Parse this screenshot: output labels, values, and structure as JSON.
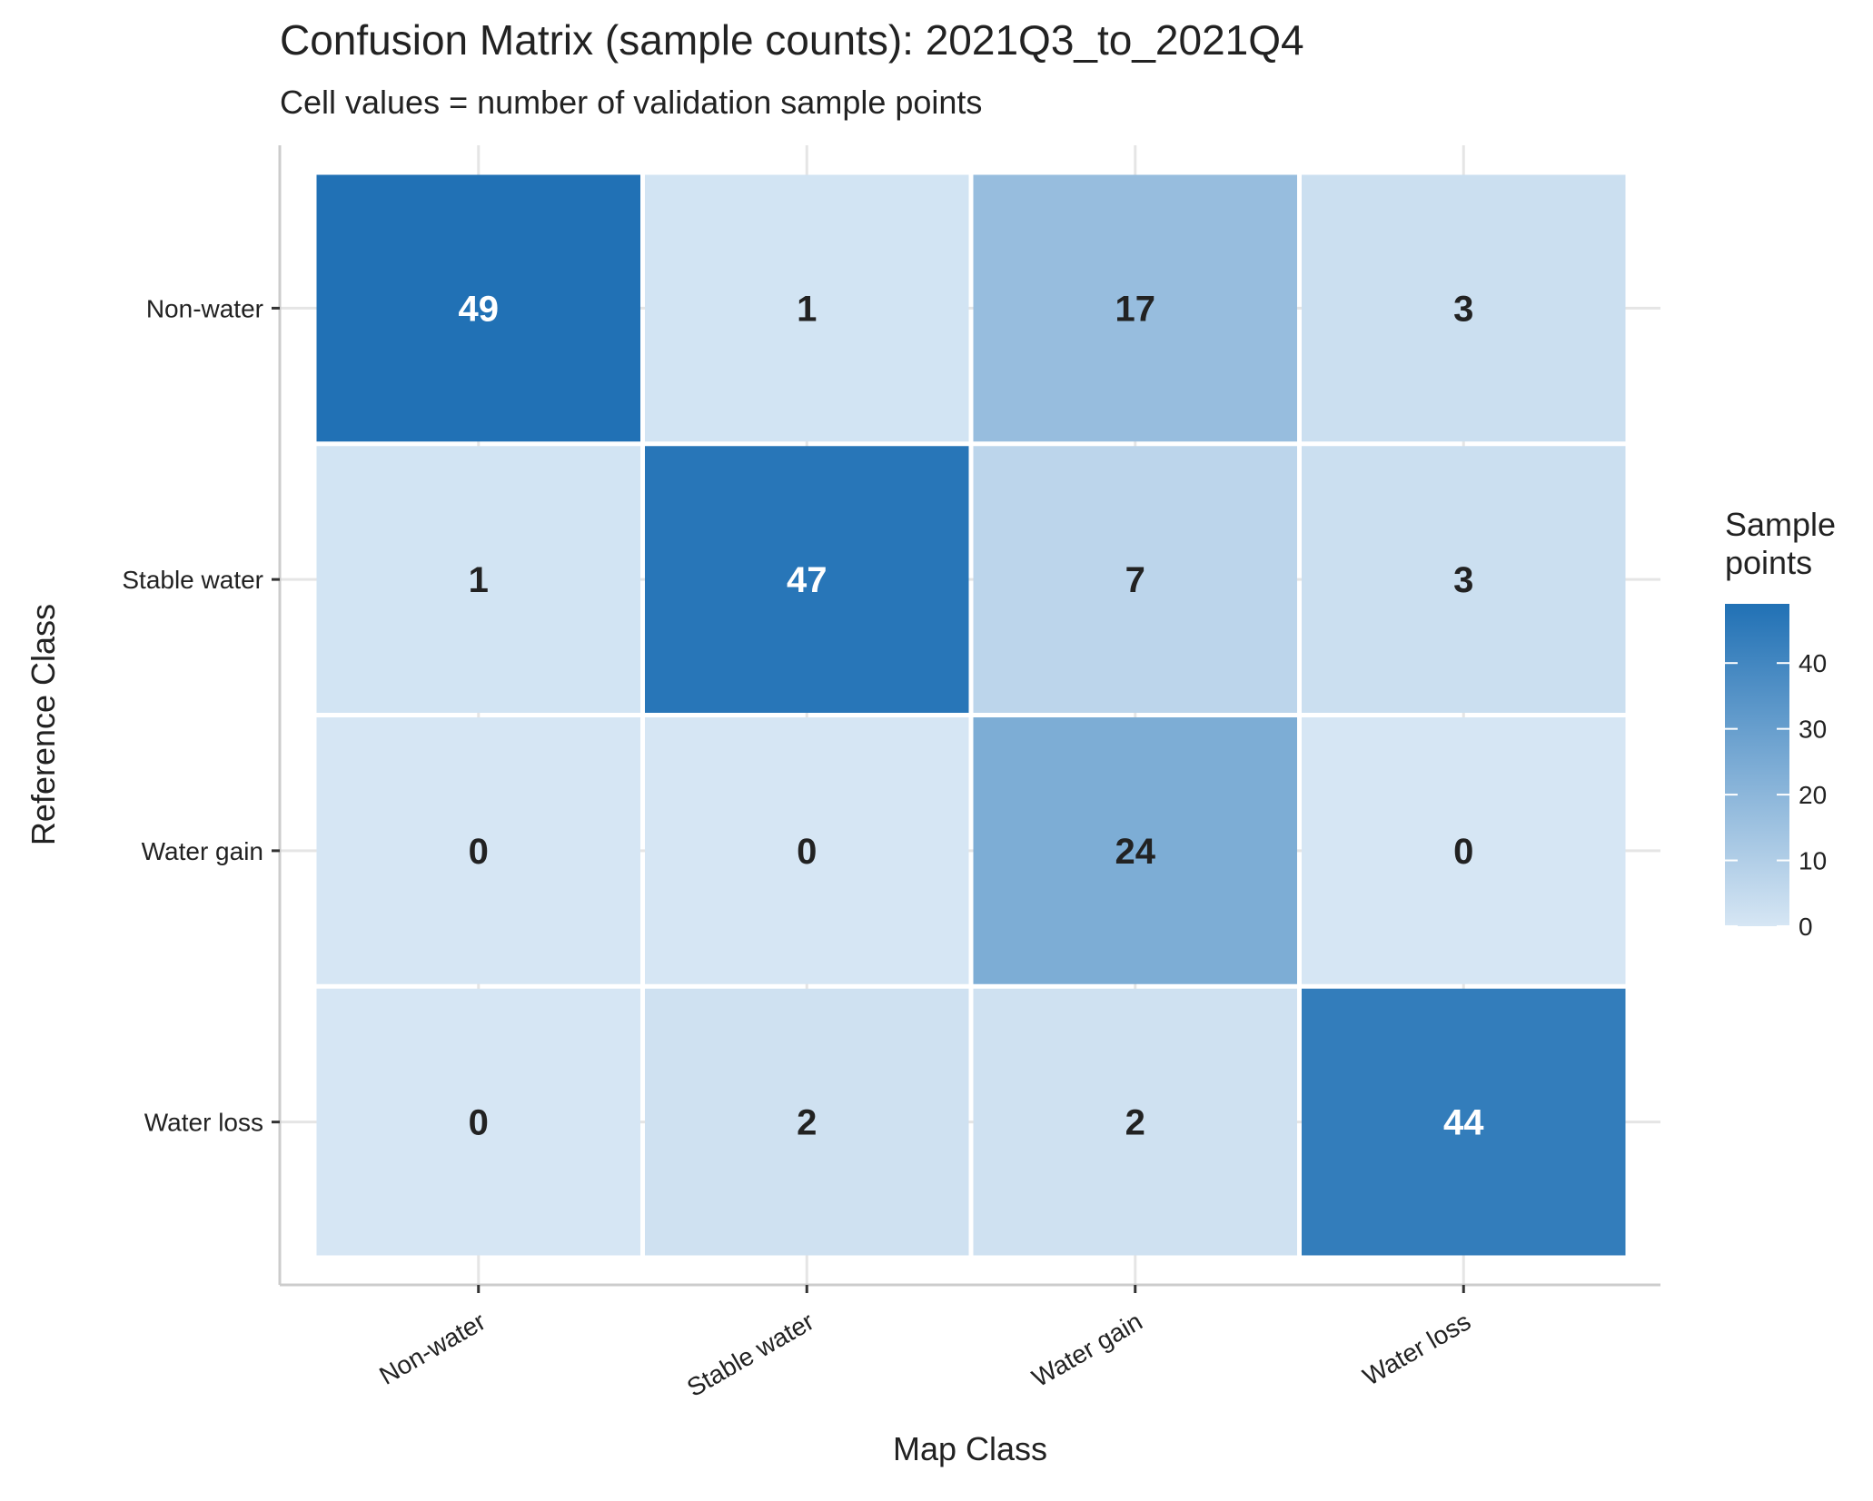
{
  "chart_data": {
    "type": "heatmap",
    "title": "Confusion Matrix (sample counts): 2021Q3_to_2021Q4",
    "subtitle": "Cell values = number of validation sample points",
    "xlabel": "Map Class",
    "ylabel": "Reference Class",
    "x_categories": [
      "Non-water",
      "Stable water",
      "Water gain",
      "Water loss"
    ],
    "y_categories": [
      "Non-water",
      "Stable water",
      "Water gain",
      "Water loss"
    ],
    "values": [
      [
        49,
        1,
        17,
        3
      ],
      [
        1,
        47,
        7,
        3
      ],
      [
        0,
        0,
        24,
        0
      ],
      [
        0,
        2,
        2,
        44
      ]
    ],
    "legend": {
      "title_lines": [
        "Sample",
        "points"
      ],
      "ticks": [
        0,
        10,
        20,
        30,
        40
      ],
      "range": [
        0,
        49
      ],
      "placement": "right"
    },
    "colors": {
      "low": "#d6e6f4",
      "high": "#2171b5",
      "label_dark": "#222222",
      "label_light": "#ffffff",
      "cell_border": "#ffffff",
      "axis_line": "#cccccc",
      "grid": "#e5e5e5"
    },
    "grid": true
  }
}
